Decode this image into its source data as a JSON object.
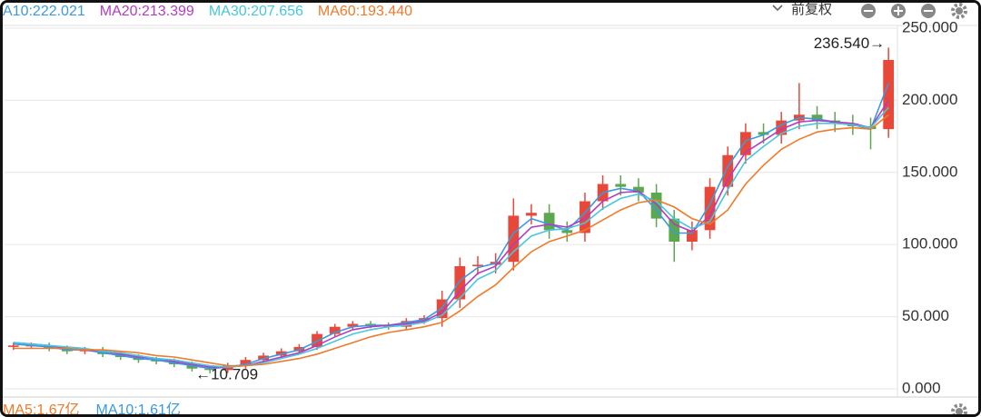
{
  "chart_data": {
    "type": "candlestick",
    "categories": [
      null,
      null,
      null,
      null,
      null,
      null,
      null,
      null,
      null,
      null,
      null,
      null,
      null,
      null,
      null,
      null,
      null,
      null,
      null,
      null,
      null,
      null,
      null,
      null,
      null,
      null,
      null,
      null,
      null,
      null,
      null,
      null,
      null,
      null,
      null,
      null,
      null,
      null,
      null,
      null,
      null,
      null,
      null,
      null,
      null,
      null,
      null,
      null,
      null,
      null
    ],
    "open": [
      29,
      30,
      30,
      28,
      26,
      27,
      24,
      22,
      20,
      19,
      17,
      14,
      13,
      16,
      20,
      23,
      26,
      29,
      38,
      43,
      45,
      44,
      43,
      47,
      49,
      62,
      85,
      86,
      88,
      120,
      122,
      110,
      108,
      130,
      142,
      140,
      136,
      118,
      102,
      110,
      140,
      162,
      178,
      176,
      186,
      190,
      186,
      184,
      182,
      180
    ],
    "high": [
      32,
      32,
      32,
      30,
      29,
      29,
      26,
      24,
      22,
      21,
      19,
      16,
      18,
      22,
      25,
      28,
      31,
      40,
      45,
      47,
      47,
      46,
      49,
      51,
      68,
      91,
      92,
      94,
      132,
      128,
      128,
      116,
      136,
      148,
      148,
      146,
      142,
      124,
      116,
      146,
      168,
      184,
      184,
      192,
      212,
      196,
      192,
      190,
      188,
      236.54
    ],
    "low": [
      27,
      28,
      26,
      24,
      24,
      22,
      20,
      18,
      17,
      15,
      12,
      10.709,
      11,
      14,
      18,
      21,
      24,
      27,
      36,
      41,
      42,
      41,
      41,
      45,
      43,
      56,
      79,
      80,
      82,
      114,
      104,
      102,
      102,
      124,
      134,
      130,
      112,
      88,
      96,
      104,
      134,
      156,
      170,
      170,
      180,
      180,
      178,
      176,
      166,
      174
    ],
    "close": [
      30,
      30,
      28,
      26,
      27,
      24,
      22,
      20,
      19,
      17,
      14,
      13,
      16,
      20,
      23,
      26,
      29,
      38,
      43,
      45,
      44,
      43,
      47,
      49,
      62,
      85,
      86,
      88,
      120,
      122,
      110,
      108,
      130,
      142,
      140,
      136,
      118,
      102,
      110,
      140,
      162,
      178,
      176,
      186,
      190,
      186,
      184,
      182,
      180,
      228
    ],
    "up_color": "#e8483a",
    "down_color": "#5ba84e",
    "series": [
      {
        "name": "A10:222.021",
        "color": "#3a9ae0",
        "values": [
          31,
          30,
          29,
          27,
          27,
          25,
          23,
          21,
          20,
          18,
          16,
          14,
          15,
          17,
          21,
          24,
          27,
          33,
          39,
          43,
          44,
          44,
          46,
          48,
          56,
          75,
          84,
          87,
          108,
          118,
          114,
          110,
          122,
          136,
          139,
          137,
          124,
          108,
          108,
          128,
          154,
          172,
          176,
          183,
          188,
          187,
          185,
          183,
          180,
          212
        ]
      },
      {
        "name": "MA20:213.399",
        "color": "#b23dc2",
        "values": [
          32,
          31,
          30,
          28,
          27,
          26,
          24,
          22,
          21,
          19,
          17,
          15,
          15,
          16,
          19,
          22,
          25,
          30,
          36,
          41,
          43,
          44,
          45,
          47,
          53,
          68,
          80,
          85,
          100,
          112,
          114,
          112,
          118,
          130,
          136,
          137,
          128,
          114,
          109,
          120,
          145,
          164,
          172,
          180,
          185,
          186,
          185,
          184,
          181,
          200
        ]
      },
      {
        "name": "MA30:207.656",
        "color": "#47c6dd",
        "values": [
          32,
          31,
          30,
          29,
          28,
          26,
          25,
          23,
          21,
          20,
          18,
          16,
          15,
          16,
          18,
          21,
          24,
          28,
          33,
          38,
          41,
          43,
          44,
          46,
          51,
          63,
          76,
          82,
          95,
          106,
          110,
          111,
          115,
          125,
          132,
          135,
          130,
          118,
          111,
          116,
          138,
          158,
          168,
          177,
          182,
          184,
          184,
          183,
          181,
          195
        ]
      },
      {
        "name": "MA60:193.440",
        "color": "#f07a2a",
        "values": [
          28,
          28,
          28,
          28,
          27,
          27,
          26,
          25,
          23,
          22,
          20,
          18,
          16,
          16,
          17,
          19,
          21,
          24,
          28,
          32,
          36,
          39,
          41,
          43,
          46,
          54,
          64,
          72,
          84,
          95,
          102,
          106,
          110,
          117,
          124,
          129,
          131,
          126,
          118,
          114,
          124,
          142,
          155,
          166,
          173,
          178,
          180,
          181,
          180,
          190
        ]
      }
    ],
    "ylim": [
      -5.7,
      251.9
    ],
    "yticks": [
      {
        "value": 0,
        "label": "0.000"
      },
      {
        "value": 50,
        "label": "50.000"
      },
      {
        "value": 100,
        "label": "100.000"
      },
      {
        "value": 150,
        "label": "150.000"
      },
      {
        "value": 200,
        "label": "200.000"
      },
      {
        "value": 250,
        "label": "250.000"
      }
    ],
    "grid": true,
    "annotations": [
      {
        "text": "236.540→"
      },
      {
        "text": "←10.709"
      }
    ],
    "adjust_mode": "前复权",
    "volume_legend": [
      {
        "name": "MA5:1.67亿",
        "color": "#f07a2a"
      },
      {
        "name": "MA10:1.61亿",
        "color": "#3a9ae0"
      }
    ]
  }
}
